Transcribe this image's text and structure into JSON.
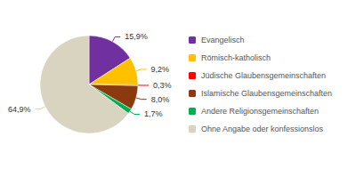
{
  "chart_data": {
    "type": "pie",
    "categories": [
      "Evangelisch",
      "Römisch-katholisch",
      "Jüdische Glaubensgemeinschaften",
      "Islamische Glaubensgemeinschaften",
      "Andere Religionsgemeinschaften",
      "Ohne Angabe oder konfessionslos"
    ],
    "values": [
      15.9,
      9.2,
      0.3,
      8.0,
      1.7,
      64.9
    ],
    "value_labels": [
      "15,9%",
      "9,2%",
      "0,3%",
      "8,0%",
      "1,7%",
      "64,9%"
    ],
    "colors": [
      "#7030A0",
      "#FFC000",
      "#FF0000",
      "#8B3A0F",
      "#00B050",
      "#D8D4C0"
    ],
    "data_labels": true,
    "legend": "right"
  }
}
